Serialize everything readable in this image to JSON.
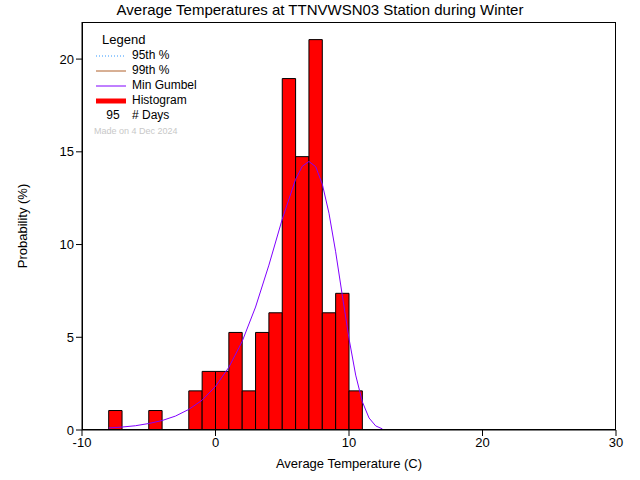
{
  "chart_data": {
    "type": "histogram",
    "title": "Average Temperatures at TTNVWSN03 Station during Winter",
    "x_label": "Average Temperature (C)",
    "y_label": "Probability (%)",
    "xlim": [
      -10,
      30
    ],
    "xticks": [
      -10,
      0,
      10,
      20,
      30
    ],
    "ylim": [
      0,
      22
    ],
    "yticks": [
      0,
      5,
      10,
      15,
      20
    ],
    "legend": "upper left",
    "legend_title": "Legend",
    "series": [
      {
        "name": "95th %",
        "color": "#3399ff",
        "type": "line",
        "line_style": "dotted",
        "x": [],
        "values": []
      },
      {
        "name": "99th %",
        "color": "#b0602a",
        "type": "line",
        "line_style": "solid",
        "x": [],
        "values": []
      },
      {
        "name": "Min Gumbel",
        "color": "#8000ff",
        "type": "line",
        "line_style": "solid",
        "x": [
          -8,
          -7,
          -6,
          -5,
          -4,
          -3,
          -2,
          -1,
          0,
          1,
          2,
          3,
          4,
          5,
          6,
          6.5,
          7,
          7.5,
          8,
          8.5,
          9,
          9.5,
          10,
          10.5,
          11,
          11.5,
          12,
          12.5
        ],
        "values": [
          0.11,
          0.16,
          0.23,
          0.35,
          0.51,
          0.75,
          1.11,
          1.61,
          2.35,
          3.38,
          4.78,
          6.63,
          8.89,
          11.37,
          13.52,
          14.22,
          14.48,
          14.2,
          13.26,
          11.69,
          9.61,
          7.25,
          4.93,
          2.96,
          1.52,
          0.65,
          0.22,
          0.06
        ]
      },
      {
        "name": "Histogram",
        "color": "#ff0000",
        "type": "histogram",
        "bins": [
          -8,
          -7,
          -6,
          -5,
          -4,
          -3,
          -2,
          -1,
          0,
          1,
          2,
          3,
          4,
          5,
          6,
          7,
          8,
          9,
          10,
          11
        ],
        "values": [
          1.05,
          0,
          0,
          1.05,
          0,
          0,
          2.11,
          3.16,
          3.16,
          5.26,
          2.11,
          5.26,
          6.32,
          18.95,
          14.74,
          21.05,
          6.32,
          7.37,
          2.11
        ]
      }
    ],
    "days": 95,
    "days_label": "# Days",
    "annotation": "Made on 4 Dec 2024"
  }
}
